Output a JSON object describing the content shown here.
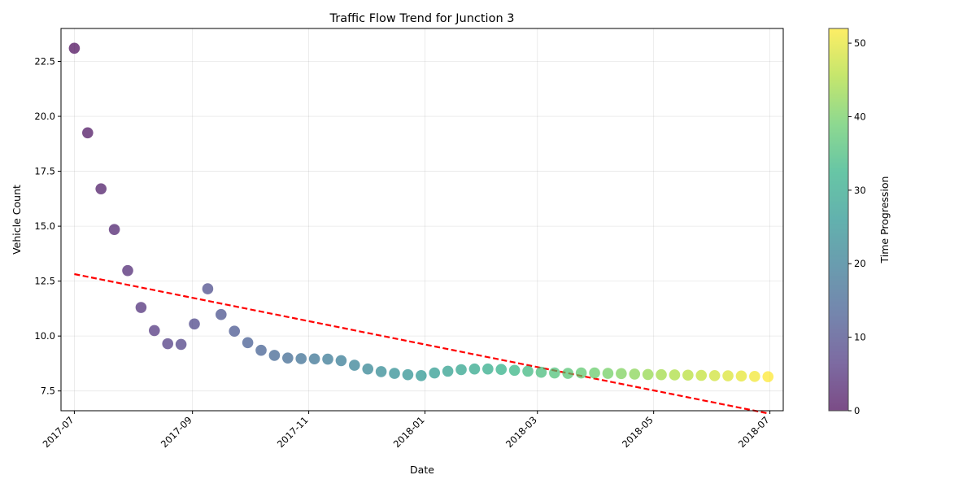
{
  "chart_data": {
    "type": "scatter",
    "title": "Traffic Flow Trend for Junction 3",
    "xlabel": "Date",
    "ylabel": "Vehicle Count",
    "x_range": [
      "2017-06-24",
      "2018-07-08"
    ],
    "ylim": [
      6.6,
      24.0
    ],
    "grid": true,
    "x_ticks": [
      "2017-07",
      "2017-09",
      "2017-11",
      "2018-01",
      "2018-03",
      "2018-05",
      "2018-07"
    ],
    "y_ticks": [
      7.5,
      10.0,
      12.5,
      15.0,
      17.5,
      20.0,
      22.5
    ],
    "y_tick_labels": [
      "7.5",
      "10.0",
      "12.5",
      "15.0",
      "17.5",
      "20.0",
      "22.5"
    ],
    "x_start": "2017-07-01",
    "step_days": 7,
    "values": [
      23.1,
      19.25,
      16.7,
      14.85,
      12.98,
      11.3,
      10.25,
      9.65,
      9.62,
      10.55,
      12.15,
      10.98,
      10.22,
      9.7,
      9.35,
      9.12,
      9.0,
      8.97,
      8.96,
      8.95,
      8.88,
      8.67,
      8.5,
      8.38,
      8.3,
      8.24,
      8.2,
      8.32,
      8.4,
      8.47,
      8.5,
      8.5,
      8.48,
      8.44,
      8.4,
      8.35,
      8.32,
      8.3,
      8.32,
      8.32,
      8.3,
      8.29,
      8.27,
      8.25,
      8.24,
      8.23,
      8.22,
      8.21,
      8.2,
      8.19,
      8.18,
      8.16,
      8.15
    ],
    "trend_line": {
      "x": [
        "2017-07-01",
        "2018-06-30"
      ],
      "y": [
        12.82,
        6.48
      ],
      "color": "#ff0000"
    },
    "colorbar": {
      "label": "Time Progression",
      "min": 0,
      "max": 52,
      "ticks": [
        0,
        10,
        20,
        30,
        40,
        50
      ],
      "colormap": "viridis"
    }
  }
}
